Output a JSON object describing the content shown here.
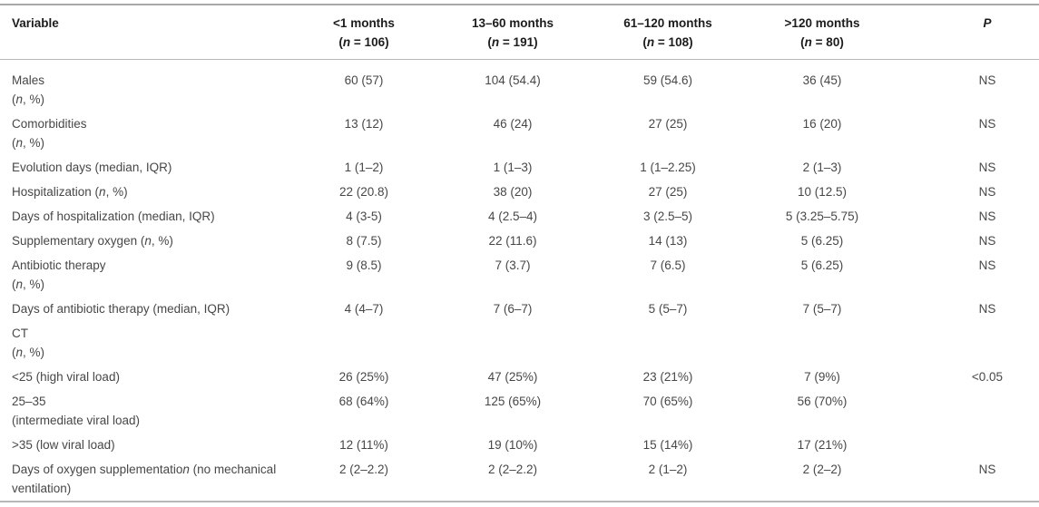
{
  "table": {
    "columns": [
      {
        "line1": "Variable",
        "line2": ""
      },
      {
        "line1": "<1 months",
        "line2": "(*n* = 106)"
      },
      {
        "line1": "13–60 months",
        "line2": "(*n* = 191)"
      },
      {
        "line1": "61–120 months",
        "line2": "(*n* = 108)"
      },
      {
        "line1": ">120 months",
        "line2": "(*n* = 80)"
      },
      {
        "line1": "*P*",
        "line2": ""
      }
    ],
    "rows": [
      {
        "label": "Males\n(*n*, %)",
        "values": [
          "60 (57)",
          "104 (54.4)",
          "59 (54.6)",
          "36 (45)",
          "NS"
        ]
      },
      {
        "label": "Comorbidities\n(*n*, %)",
        "values": [
          "13 (12)",
          "46 (24)",
          "27 (25)",
          "16 (20)",
          "NS"
        ]
      },
      {
        "label": "Evolution days (median, IQR)",
        "values": [
          "1 (1–2)",
          "1 (1–3)",
          "1 (1–2.25)",
          "2 (1–3)",
          "NS"
        ]
      },
      {
        "label": "Hospitalization (*n*, %)",
        "values": [
          "22 (20.8)",
          "38 (20)",
          "27 (25)",
          "10 (12.5)",
          "NS"
        ]
      },
      {
        "label": "Days of hospitalization (median, IQR)",
        "values": [
          "4 (3-5)",
          "4 (2.5–4)",
          "3 (2.5–5)",
          "5 (3.25–5.75)",
          "NS"
        ]
      },
      {
        "label": "Supplementary oxygen (*n*, %)",
        "values": [
          "8 (7.5)",
          "22 (11.6)",
          "14 (13)",
          "5 (6.25)",
          "NS"
        ]
      },
      {
        "label": "Antibiotic therapy\n(*n*, %)",
        "values": [
          "9 (8.5)",
          "7 (3.7)",
          "7 (6.5)",
          "5 (6.25)",
          "NS"
        ]
      },
      {
        "label": "Days of antibiotic therapy (median, IQR)",
        "values": [
          "4 (4–7)",
          "7 (6–7)",
          "5 (5–7)",
          "7 (5–7)",
          "NS"
        ]
      },
      {
        "label": "CT\n(*n*, %)",
        "values": [
          "",
          "",
          "",
          "",
          ""
        ]
      },
      {
        "label": "<25 (high viral load)",
        "values": [
          "26 (25%)",
          "47 (25%)",
          "23 (21%)",
          "7 (9%)",
          "<0.05"
        ]
      },
      {
        "label": "25–35\n(intermediate viral load)",
        "values": [
          "68 (64%)",
          "125 (65%)",
          "70 (65%)",
          "56 (70%)",
          ""
        ]
      },
      {
        "label": ">35 (low viral load)",
        "values": [
          "12 (11%)",
          "19 (10%)",
          "15 (14%)",
          "17 (21%)",
          ""
        ]
      },
      {
        "label": "Days of oxygen supplementatio*n* (no mechanical ventilation)",
        "values": [
          "2 (2–2.2)",
          "2 (2–2.2)",
          "2 (1–2)",
          "2 (2–2)",
          "NS"
        ]
      }
    ]
  }
}
